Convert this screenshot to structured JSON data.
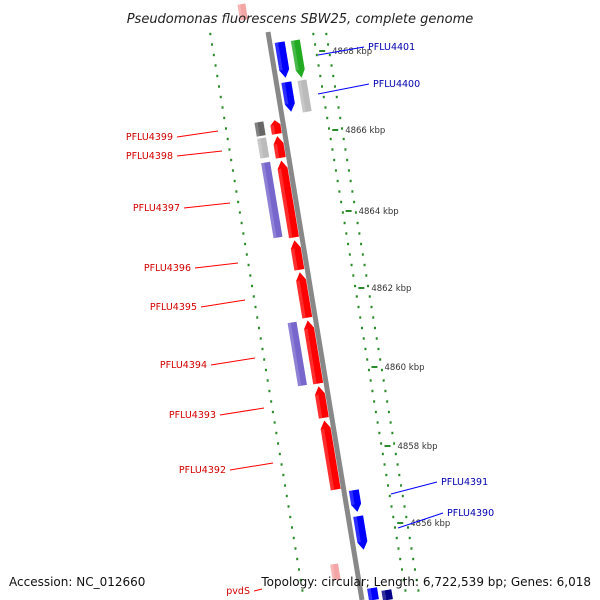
{
  "title": "Pseudomonas fluorescens SBW25, complete genome",
  "accession": "Accession: NC_012660",
  "summary": "Topology: circular; Length: 6,722,539 bp; Genes: 6,018",
  "ticks": [
    {
      "label": "4868 kbp"
    },
    {
      "label": "4866 kbp"
    },
    {
      "label": "4864 kbp"
    },
    {
      "label": "4862 kbp"
    },
    {
      "label": "4860 kbp"
    },
    {
      "label": "4858 kbp"
    },
    {
      "label": "4856 kbp"
    }
  ],
  "genes": [
    {
      "label": "PFLU4401",
      "strand": "forward"
    },
    {
      "label": "PFLU4400",
      "strand": "forward"
    },
    {
      "label": "PFLU4399",
      "strand": "reverse"
    },
    {
      "label": "PFLU4398",
      "strand": "reverse"
    },
    {
      "label": "PFLU4397",
      "strand": "reverse"
    },
    {
      "label": "PFLU4396",
      "strand": "reverse"
    },
    {
      "label": "PFLU4395",
      "strand": "reverse"
    },
    {
      "label": "PFLU4394",
      "strand": "reverse"
    },
    {
      "label": "PFLU4393",
      "strand": "reverse"
    },
    {
      "label": "PFLU4392",
      "strand": "reverse"
    },
    {
      "label": "PFLU4391",
      "strand": "forward"
    },
    {
      "label": "PFLU4390",
      "strand": "forward"
    },
    {
      "label": "pvdS",
      "strand": "reverse"
    }
  ],
  "colors": {
    "forward_cds": "#0000ff",
    "reverse_cds": "#ff0000",
    "forward_orf": "#22aa22",
    "reverse_orf": "#7766cc",
    "gray_orf": "#bbbbbb",
    "dark_orf": "#666666",
    "backbone": "#888888",
    "tick_mark": "#2a8a2a"
  }
}
